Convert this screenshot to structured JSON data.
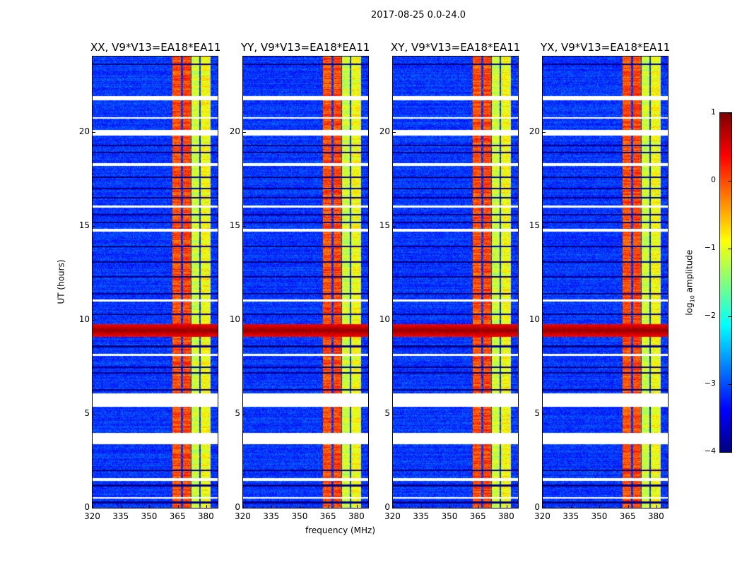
{
  "chart_data": {
    "type": "heatmap",
    "title": "2017-08-25 0.0-24.0",
    "xlabel": "frequency (MHz)",
    "ylabel": "UT (hours)",
    "xlim": [
      320,
      386
    ],
    "ylim": [
      0,
      24
    ],
    "xticks": [
      "320",
      "335",
      "350",
      "365",
      "380"
    ],
    "xtick_values": [
      320,
      335,
      350,
      365,
      380
    ],
    "yticks": [
      "0",
      "5",
      "10",
      "15",
      "20"
    ],
    "ytick_values": [
      0,
      5,
      10,
      15,
      20
    ],
    "panels": [
      {
        "title": "XX, V9*V13=EA18*EA11"
      },
      {
        "title": "YY, V9*V13=EA18*EA11"
      },
      {
        "title": "XY, V9*V13=EA18*EA11"
      },
      {
        "title": "YX, V9*V13=EA18*EA11"
      }
    ],
    "colorbar": {
      "label_prefix": "log",
      "label_sub": "10",
      "label_suffix": " amplitude",
      "range": [
        -4,
        1
      ],
      "ticks": [
        "1",
        "0",
        "−1",
        "−2",
        "−3",
        "−4"
      ],
      "tick_values": [
        1,
        0,
        -1,
        -2,
        -3,
        -4
      ],
      "colormap": "jet"
    },
    "background_level": -3.1,
    "bands": [
      {
        "fmin": 361.8,
        "fmax": 366.6,
        "level": 0.0
      },
      {
        "fmin": 367.4,
        "fmax": 371.5,
        "level": 0.05
      },
      {
        "fmin": 372.2,
        "fmax": 376.3,
        "level": -1.1
      },
      {
        "fmin": 377.0,
        "fmax": 382.0,
        "level": -0.9
      }
    ],
    "strong_event": {
      "tmin": 9.1,
      "tmax": 9.8,
      "level": 0.9
    },
    "flagged_hours": [
      [
        3.4,
        4.0
      ],
      [
        5.4,
        6.1
      ],
      [
        1.45,
        1.6
      ],
      [
        0.5,
        0.6
      ],
      [
        14.7,
        14.85
      ],
      [
        18.2,
        18.35
      ],
      [
        19.8,
        20.1
      ],
      [
        20.7,
        20.8
      ],
      [
        21.7,
        21.9
      ],
      [
        11.0,
        11.1
      ],
      [
        16.0,
        16.1
      ],
      [
        8.1,
        8.2
      ]
    ],
    "dark_hours": [
      0.3,
      1.2,
      2.0,
      6.3,
      7.2,
      7.5,
      8.6,
      10.3,
      11.4,
      12.3,
      13.1,
      13.9,
      15.2,
      15.6,
      16.5,
      17.0,
      17.6,
      18.9,
      19.3,
      23.6
    ]
  }
}
